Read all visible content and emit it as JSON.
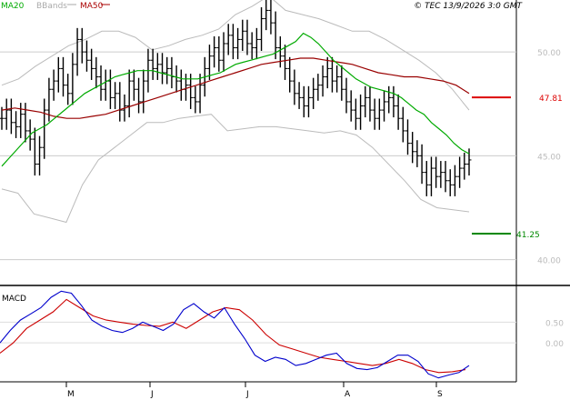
{
  "header": {
    "legend": [
      {
        "label": "MA20",
        "color": "#00aa00"
      },
      {
        "label": "BBands",
        "color": "#aaaaaa"
      },
      {
        "label": "MA50",
        "color": "#aa0000"
      }
    ],
    "copyright": "© TEC 13/9/2026 3:0 GMT"
  },
  "macd_label": "MACD",
  "levels": {
    "resistance": {
      "label": "47.81",
      "value": 47.81,
      "color": "#dd0000"
    },
    "support": {
      "label": "41.25",
      "value": 41.25,
      "color": "#008800"
    }
  },
  "chart_data": [
    {
      "type": "line",
      "title": "",
      "xlabel": "",
      "ylabel": "",
      "ylim": [
        38.8,
        52.5
      ],
      "x_tick_labels": [
        "M",
        "J",
        "J",
        "A",
        "S"
      ],
      "y_tick_labels": [
        "50.00",
        "45.00",
        "40.00"
      ],
      "y_ticks": [
        50,
        45,
        40
      ],
      "grid": true,
      "legend": "top-left",
      "ohlc_close": [
        46.8,
        47.2,
        46.6,
        46.4,
        47.0,
        46.2,
        45.8,
        44.6,
        45.4,
        47.2,
        48.2,
        48.6,
        49.2,
        48.4,
        48.0,
        49.4,
        50.6,
        50.0,
        49.6,
        49.2,
        48.8,
        48.2,
        48.6,
        47.8,
        48.0,
        47.2,
        47.4,
        48.6,
        48.2,
        47.6,
        48.6,
        49.6,
        49.2,
        49.4,
        49.0,
        49.2,
        48.8,
        48.6,
        48.2,
        48.4,
        47.8,
        47.6,
        48.4,
        49.2,
        49.8,
        50.2,
        49.6,
        50.4,
        50.8,
        50.2,
        50.6,
        51.0,
        50.4,
        50.2,
        50.6,
        51.6,
        52.0,
        51.4,
        50.2,
        49.8,
        49.2,
        48.6,
        48.0,
        47.8,
        47.4,
        47.8,
        48.2,
        48.4,
        48.8,
        49.2,
        48.6,
        48.8,
        48.2,
        47.6,
        47.2,
        46.8,
        47.4,
        47.8,
        47.2,
        46.8,
        47.2,
        47.6,
        47.8,
        47.4,
        46.8,
        46.2,
        45.6,
        45.2,
        45.0,
        44.2,
        43.6,
        44.4,
        44.0,
        44.2,
        43.8,
        43.6,
        44.0,
        44.4,
        44.6,
        44.8
      ],
      "series": [
        {
          "name": "MA20",
          "values": [
            44.5,
            44.9,
            45.3,
            45.7,
            46.1,
            46.3,
            46.5,
            46.8,
            47.1,
            47.4,
            47.7,
            48.0,
            48.2,
            48.4,
            48.6,
            48.8,
            48.9,
            49.0,
            49.1,
            49.1,
            49.1,
            49.0,
            48.9,
            48.8,
            48.7,
            48.7,
            48.7,
            48.8,
            48.9,
            49.0,
            49.2,
            49.4,
            49.5,
            49.6,
            49.7,
            49.8,
            49.9,
            50.1,
            50.3,
            50.5,
            50.9,
            50.7,
            50.4,
            50.0,
            49.6,
            49.3,
            49.0,
            48.7,
            48.5,
            48.3,
            48.2,
            48.1,
            48.0,
            47.8,
            47.5,
            47.2,
            47.0,
            46.6,
            46.3,
            46.0,
            45.6,
            45.3,
            45.1
          ]
        },
        {
          "name": "MA50",
          "values": [
            47.2,
            47.3,
            47.2,
            47.1,
            46.9,
            46.8,
            46.8,
            46.9,
            47.0,
            47.2,
            47.4,
            47.6,
            47.8,
            48.0,
            48.2,
            48.4,
            48.6,
            48.8,
            49.0,
            49.2,
            49.4,
            49.5,
            49.6,
            49.7,
            49.7,
            49.6,
            49.5,
            49.4,
            49.2,
            49.0,
            48.9,
            48.8,
            48.8,
            48.7,
            48.6,
            48.4,
            48.0
          ]
        },
        {
          "name": "BBands upper",
          "values": [
            48.4,
            48.7,
            49.3,
            49.8,
            50.3,
            50.6,
            51.0,
            51.0,
            50.7,
            50.1,
            50.3,
            50.6,
            50.8,
            51.1,
            51.8,
            52.2,
            52.7,
            52.0,
            51.8,
            51.6,
            51.3,
            51.0,
            51.0,
            50.6,
            50.1,
            49.6,
            49.0,
            48.2,
            47.2
          ]
        },
        {
          "name": "BBands lower",
          "values": [
            43.4,
            43.2,
            42.2,
            42.0,
            41.8,
            43.6,
            44.8,
            45.4,
            46.0,
            46.6,
            46.6,
            46.8,
            46.9,
            47.0,
            46.2,
            46.3,
            46.4,
            46.4,
            46.3,
            46.2,
            46.1,
            46.2,
            46.0,
            45.4,
            44.6,
            43.8,
            42.9,
            42.5,
            42.4,
            42.3
          ]
        }
      ]
    },
    {
      "type": "line",
      "title": "",
      "xlabel": "",
      "ylabel": "",
      "ylim": [
        -0.9,
        1.3
      ],
      "y_tick_labels": [
        "0.50",
        "0.00"
      ],
      "y_ticks": [
        0.5,
        0.0
      ],
      "series": [
        {
          "name": "MACD",
          "values": [
            0.0,
            0.3,
            0.55,
            0.7,
            0.85,
            1.1,
            1.25,
            1.2,
            0.9,
            0.55,
            0.4,
            0.3,
            0.25,
            0.35,
            0.5,
            0.4,
            0.3,
            0.45,
            0.8,
            0.95,
            0.75,
            0.6,
            0.85,
            0.45,
            0.1,
            -0.3,
            -0.45,
            -0.35,
            -0.4,
            -0.55,
            -0.5,
            -0.4,
            -0.3,
            -0.25,
            -0.5,
            -0.62,
            -0.65,
            -0.6,
            -0.45,
            -0.3,
            -0.3,
            -0.45,
            -0.75,
            -0.85,
            -0.78,
            -0.72,
            -0.55
          ]
        },
        {
          "name": "Signal",
          "values": [
            -0.25,
            0.0,
            0.35,
            0.55,
            0.75,
            1.05,
            0.85,
            0.65,
            0.55,
            0.5,
            0.45,
            0.42,
            0.4,
            0.5,
            0.35,
            0.55,
            0.75,
            0.85,
            0.8,
            0.55,
            0.2,
            -0.05,
            -0.15,
            -0.25,
            -0.35,
            -0.4,
            -0.45,
            -0.5,
            -0.55,
            -0.5,
            -0.4,
            -0.5,
            -0.65,
            -0.72,
            -0.7,
            -0.65
          ]
        }
      ]
    }
  ]
}
